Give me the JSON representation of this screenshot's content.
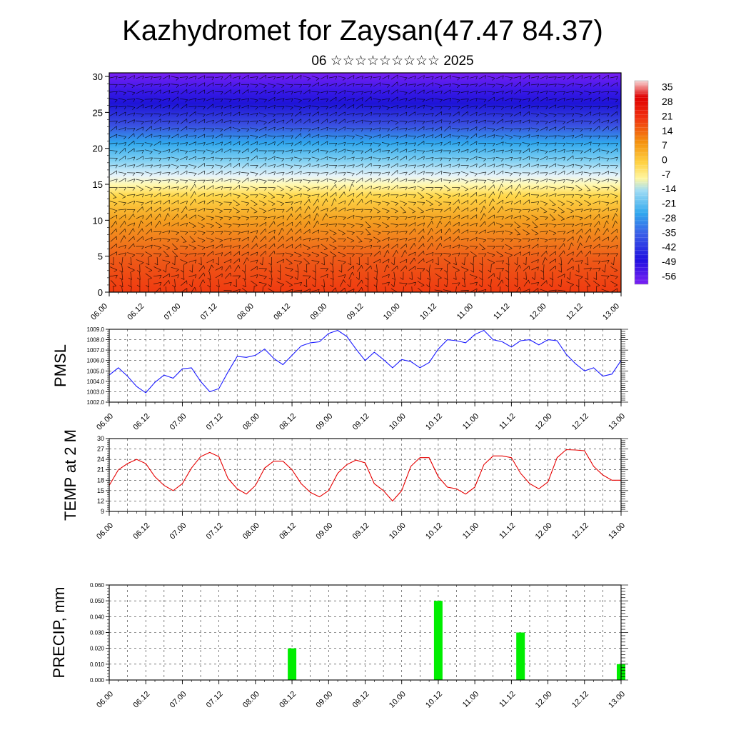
{
  "title": "Kazhydromet for Zaysan(47.47 84.37)",
  "subtitle": "06 ☆☆☆☆☆☆☆☆☆ 2025",
  "time_ticks": [
    "06.00",
    "06.12",
    "07.00",
    "07.12",
    "08.00",
    "08.12",
    "09.00",
    "09.12",
    "10.00",
    "10.12",
    "11.00",
    "11.12",
    "12.00",
    "12.12",
    "13.00"
  ],
  "colors": {
    "pmsl_line": "#1a1aff",
    "temp_line": "#e60000",
    "precip_bar": "#00ee00"
  },
  "chart_data": [
    {
      "type": "heatmap",
      "name_on_chart": "",
      "description": "Time-height cross-section of temperature with wind barbs",
      "y_ticks": [
        "0",
        "5",
        "10",
        "15",
        "20",
        "25",
        "30"
      ],
      "ylim": [
        0,
        30.5
      ],
      "colorbar_labels": [
        "35",
        "28",
        "21",
        "14",
        "7",
        "0",
        "-7",
        "-14",
        "-21",
        "-28",
        "-35",
        "-42",
        "-49",
        "-56"
      ],
      "colorbar_range": [
        -60,
        38
      ]
    },
    {
      "type": "line",
      "ylabel": "PMSL",
      "ylim": [
        1002.0,
        1009.0
      ],
      "y_ticks": [
        "1002.0",
        "1003.0",
        "1004.0",
        "1005.0",
        "1006.0",
        "1007.0",
        "1008.0",
        "1009.0"
      ],
      "x": [
        0,
        3,
        6,
        9,
        12,
        15,
        18,
        21,
        24,
        27,
        30,
        33,
        36,
        39,
        42,
        45,
        48,
        51,
        54,
        57,
        60,
        63,
        66,
        69,
        72,
        75,
        78,
        81,
        84,
        87,
        90,
        93,
        96,
        99,
        102,
        105,
        108,
        111,
        114,
        117,
        120,
        123,
        126,
        129,
        132,
        135,
        138,
        141,
        144,
        147,
        150,
        153,
        156,
        159,
        162,
        165,
        168
      ],
      "values": [
        1004.6,
        1005.3,
        1004.5,
        1003.5,
        1002.9,
        1003.9,
        1004.6,
        1004.3,
        1005.2,
        1005.3,
        1004.0,
        1003.0,
        1003.3,
        1004.9,
        1006.4,
        1006.3,
        1006.5,
        1007.1,
        1006.2,
        1005.6,
        1006.5,
        1007.4,
        1007.7,
        1007.8,
        1008.6,
        1008.9,
        1008.3,
        1007.1,
        1006.0,
        1006.8,
        1006.1,
        1005.3,
        1006.1,
        1005.9,
        1005.3,
        1005.8,
        1007.1,
        1008.0,
        1007.9,
        1007.7,
        1008.5,
        1008.9,
        1008.0,
        1007.8,
        1007.3,
        1007.9,
        1008.0,
        1007.5,
        1008.0,
        1007.9,
        1006.6,
        1005.7,
        1005.0,
        1005.3,
        1004.5,
        1004.7,
        1006.0
      ]
    },
    {
      "type": "line",
      "ylabel": "TEMP at 2 M",
      "ylim": [
        9,
        30
      ],
      "y_ticks": [
        "9",
        "12",
        "15",
        "18",
        "21",
        "24",
        "27",
        "30"
      ],
      "x": [
        0,
        3,
        6,
        9,
        12,
        15,
        18,
        21,
        24,
        27,
        30,
        33,
        36,
        39,
        42,
        45,
        48,
        51,
        54,
        57,
        60,
        63,
        66,
        69,
        72,
        75,
        78,
        81,
        84,
        87,
        90,
        93,
        96,
        99,
        102,
        105,
        108,
        111,
        114,
        117,
        120,
        123,
        126,
        129,
        132,
        135,
        138,
        141,
        144,
        147,
        150,
        153,
        156,
        159,
        162,
        165,
        168
      ],
      "values": [
        16.5,
        21.0,
        22.8,
        24.0,
        22.8,
        19.0,
        16.5,
        15.0,
        17.0,
        21.5,
        24.8,
        26.0,
        24.8,
        18.5,
        15.5,
        14.0,
        16.5,
        21.5,
        23.5,
        23.5,
        21.0,
        17.0,
        14.5,
        13.2,
        15.0,
        20.0,
        22.5,
        23.8,
        23.0,
        17.0,
        15.0,
        12.0,
        15.0,
        22.0,
        24.5,
        24.5,
        19.0,
        16.0,
        15.5,
        14.0,
        16.0,
        22.5,
        25.0,
        25.0,
        24.5,
        20.0,
        17.0,
        15.5,
        17.5,
        24.5,
        26.8,
        26.7,
        26.5,
        22.0,
        19.5,
        18.0,
        18.0
      ]
    },
    {
      "type": "bar",
      "ylabel": "PRECIP, mm",
      "ylim": [
        0,
        0.06
      ],
      "y_ticks": [
        "0.000",
        "0.010",
        "0.020",
        "0.030",
        "0.040",
        "0.050",
        "0.060"
      ],
      "x": [
        60,
        108,
        135,
        168
      ],
      "values": [
        0.02,
        0.05,
        0.03,
        0.01
      ]
    }
  ]
}
